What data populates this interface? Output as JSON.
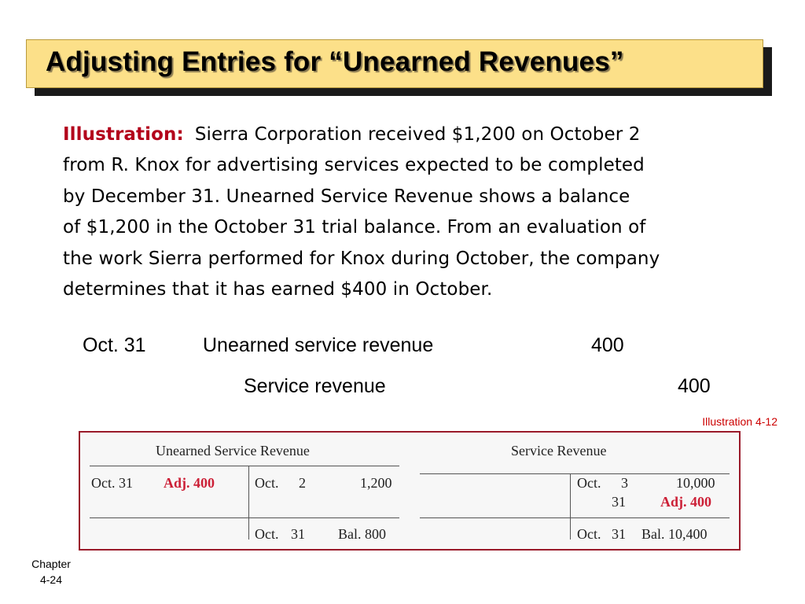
{
  "slide": {
    "title": "Adjusting Entries for “Unearned Revenues”",
    "colors": {
      "title_bg": "#fce089",
      "accent_red": "#cc1f36",
      "label_red": "#b3001b"
    }
  },
  "illustration": {
    "label": "Illustration:",
    "lines": [
      "Sierra Corporation received $1,200 on October 2",
      "from R. Knox for advertising services expected to be completed",
      "by December 31.  Unearned Service Revenue shows a balance",
      "of $1,200 in the October 31 trial balance.  From an evaluation of",
      "the work Sierra performed for Knox during October, the company",
      "determines that it has earned $400 in October."
    ]
  },
  "journal_entry": {
    "date": "Oct. 31",
    "debit_account": "Unearned service revenue",
    "debit_amount": "400",
    "credit_account": "Service revenue",
    "credit_amount": "400"
  },
  "illustration_ref": "Illustration 4-12",
  "t_accounts": {
    "unearned": {
      "title": "Unearned Service Revenue",
      "debit_date": "Oct. 31",
      "debit_value": "Adj. 400",
      "credit_date": "Oct.",
      "credit_day": "2",
      "credit_amount": "1,200",
      "bal_month": "Oct.",
      "bal_day": "31",
      "bal_value": "Bal. 800"
    },
    "service": {
      "title": "Service Revenue",
      "credit_month": "Oct.",
      "credit_day1": "3",
      "credit_amount1": "10,000",
      "credit_day2": "31",
      "credit_adj": "Adj. 400",
      "bal_month": "Oct.",
      "bal_day": "31",
      "bal_value": "Bal. 10,400"
    }
  },
  "footer": {
    "chapter": "Chapter",
    "page": "4-24"
  }
}
